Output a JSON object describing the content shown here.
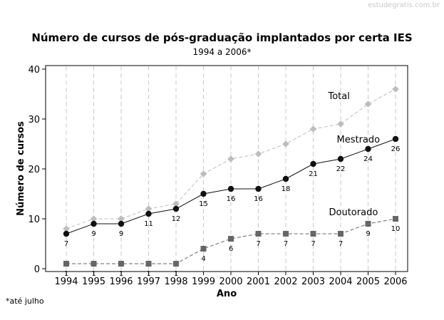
{
  "watermark": "estudegratis.com.br",
  "footnote": "*até julho",
  "chart_data": {
    "type": "line",
    "title": "Número de cursos de pós-graduação implantados por certa IES",
    "subtitle": "1994 a  2006*",
    "xlabel": "Ano",
    "ylabel": "Número de cursos",
    "ylim": [
      0,
      40
    ],
    "yticks": [
      0,
      10,
      20,
      30,
      40
    ],
    "grid": "vertical dashed",
    "categories": [
      "1994",
      "1995",
      "1996",
      "1997",
      "1998",
      "1999",
      "2000",
      "2001",
      "2002",
      "2003",
      "2004",
      "2005",
      "2006"
    ],
    "series": [
      {
        "name": "Total",
        "color": "#bdbdbd",
        "marker": "diamond",
        "line": "dashed",
        "labeled": false,
        "values": [
          8,
          10,
          10,
          12,
          13,
          19,
          22,
          23,
          25,
          28,
          29,
          33,
          36
        ]
      },
      {
        "name": "Mestrado",
        "color": "#111111",
        "marker": "circle",
        "line": "solid",
        "labeled": true,
        "values": [
          7,
          9,
          9,
          11,
          12,
          15,
          16,
          16,
          18,
          21,
          22,
          24,
          26
        ]
      },
      {
        "name": "Doutorado",
        "color": "#666666",
        "marker": "square",
        "line": "dashed",
        "labeled": true,
        "values": [
          1,
          1,
          1,
          1,
          1,
          4,
          6,
          7,
          7,
          7,
          7,
          9,
          10
        ]
      }
    ]
  }
}
